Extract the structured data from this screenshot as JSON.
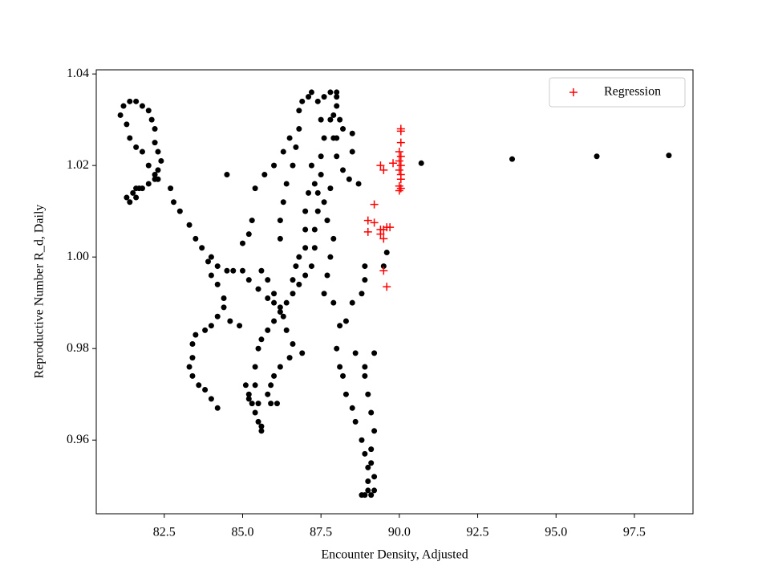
{
  "chart_data": {
    "type": "scatter",
    "xlabel": "Encounter Density, Adjusted",
    "ylabel": "Reproductive Number R_d, Daily",
    "xlim": [
      80.33,
      99.37
    ],
    "ylim": [
      0.9439,
      1.0409
    ],
    "xticks": [
      82.5,
      {
        "value": 85,
        "label": "85.0"
      },
      87.5,
      {
        "value": 90,
        "label": "90.0"
      },
      92.5,
      {
        "value": 95,
        "label": "95.0"
      },
      97.5
    ],
    "yticks": [
      0.96,
      0.98,
      {
        "value": 1,
        "label": "1.00"
      },
      1.02,
      1.04
    ],
    "legend": "upper right",
    "series": [
      {
        "color": "#000000",
        "marker": "dot",
        "x": [
          81.1,
          81.2,
          81.4,
          81.6,
          81.8,
          82.0,
          82.1,
          82.2,
          82.2,
          82.3,
          82.4,
          82.3,
          82.2,
          82.0,
          81.8,
          81.6,
          81.5,
          81.3,
          81.4,
          81.6,
          81.7,
          81.3,
          81.4,
          81.6,
          81.8,
          82.0,
          82.2,
          82.3,
          82.7,
          82.8,
          83.0,
          83.3,
          83.5,
          83.7,
          84.0,
          84.2,
          84.5,
          84.7,
          85.0,
          85.2,
          85.5,
          85.8,
          86.0,
          86.2,
          84.5,
          83.9,
          84.0,
          84.2,
          84.4,
          84.4,
          84.6,
          84.9,
          84.2,
          84.0,
          83.8,
          83.5,
          83.4,
          83.4,
          83.3,
          83.4,
          83.6,
          83.8,
          84.0,
          84.2,
          85.1,
          85.2,
          85.3,
          85.4,
          85.5,
          85.6,
          85.5,
          85.4,
          85.4,
          85.5,
          85.6,
          85.8,
          86.0,
          86.2,
          86.4,
          86.6,
          86.8,
          87.0,
          87.2,
          87.3,
          87.3,
          87.4,
          87.4,
          87.5,
          87.5,
          87.6,
          87.5,
          87.4,
          87.6,
          87.8,
          88.0,
          88.0,
          87.9,
          86.2,
          86.2,
          86.3,
          86.4,
          86.6,
          86.7,
          86.8,
          86.8,
          86.9,
          87.1,
          87.2,
          85.3,
          85.2,
          85.0,
          85.4,
          85.7,
          86.0,
          86.3,
          86.5,
          86.0,
          85.8,
          85.6,
          86.3,
          86.4,
          86.6,
          86.9,
          86.5,
          86.2,
          86.0,
          85.9,
          85.8,
          85.9,
          86.1,
          85.6,
          85.2,
          87.8,
          87.9,
          88.0,
          88.2,
          88.4,
          88.7,
          87.8,
          87.6,
          87.7,
          87.9,
          87.8,
          87.7,
          87.6,
          87.9,
          88.1,
          88.0,
          88.1,
          88.2,
          88.3,
          88.5,
          88.6,
          88.8,
          88.9,
          89.0,
          89.0,
          89.0,
          89.1,
          88.9,
          88.8,
          89.2,
          89.2,
          89.1,
          89.1,
          89.2,
          89.1,
          89.0,
          88.9,
          88.9,
          89.2,
          88.6,
          88.8,
          88.9,
          88.9,
          89.6,
          89.5,
          88.5,
          88.3,
          88.0,
          88.1,
          88.2,
          88.0,
          88.5,
          88.5,
          87.2,
          87.3,
          87.1,
          87.0,
          87.0,
          87.0,
          86.8,
          86.7,
          86.6,
          90.7,
          93.6,
          96.3,
          98.6
        ],
        "values": [
          1.031,
          1.033,
          1.034,
          1.034,
          1.033,
          1.032,
          1.03,
          1.028,
          1.025,
          1.023,
          1.021,
          1.019,
          1.017,
          1.016,
          1.015,
          1.015,
          1.014,
          1.013,
          1.012,
          1.013,
          1.015,
          1.029,
          1.026,
          1.024,
          1.023,
          1.02,
          1.018,
          1.017,
          1.015,
          1.012,
          1.01,
          1.007,
          1.004,
          1.002,
          1.0,
          0.998,
          0.997,
          0.997,
          0.997,
          0.995,
          0.993,
          0.991,
          0.99,
          0.989,
          1.018,
          0.999,
          0.996,
          0.994,
          0.991,
          0.989,
          0.986,
          0.985,
          0.987,
          0.985,
          0.984,
          0.983,
          0.981,
          0.978,
          0.976,
          0.974,
          0.972,
          0.971,
          0.969,
          0.967,
          0.972,
          0.97,
          0.968,
          0.966,
          0.964,
          0.962,
          0.968,
          0.972,
          0.976,
          0.98,
          0.982,
          0.984,
          0.986,
          0.988,
          0.99,
          0.992,
          0.994,
          0.996,
          0.998,
          1.002,
          1.006,
          1.01,
          1.014,
          1.018,
          1.022,
          1.026,
          1.03,
          1.034,
          1.035,
          1.036,
          1.035,
          1.033,
          1.031,
          1.004,
          1.008,
          1.012,
          1.016,
          1.02,
          1.024,
          1.028,
          1.032,
          1.034,
          1.035,
          1.036,
          1.008,
          1.005,
          1.003,
          1.015,
          1.018,
          1.02,
          1.023,
          1.026,
          0.992,
          0.995,
          0.997,
          0.987,
          0.984,
          0.981,
          0.979,
          0.978,
          0.976,
          0.974,
          0.972,
          0.97,
          0.968,
          0.968,
          0.963,
          0.969,
          1.03,
          1.026,
          1.022,
          1.019,
          1.017,
          1.016,
          1.015,
          1.012,
          1.008,
          1.004,
          1.0,
          0.996,
          0.992,
          0.99,
          0.985,
          0.98,
          0.976,
          0.974,
          0.97,
          0.967,
          0.964,
          0.96,
          0.957,
          0.954,
          0.951,
          0.949,
          0.948,
          0.948,
          0.948,
          0.949,
          0.952,
          0.955,
          0.958,
          0.962,
          0.966,
          0.97,
          0.974,
          0.976,
          0.979,
          0.979,
          0.992,
          0.995,
          0.998,
          1.001,
          0.998,
          0.99,
          0.986,
          1.026,
          1.03,
          1.028,
          1.036,
          1.023,
          1.027,
          1.02,
          1.016,
          1.014,
          1.01,
          1.006,
          1.002,
          1.0,
          0.998,
          0.995,
          1.0205,
          1.0214,
          1.022,
          1.0222
        ]
      },
      {
        "name": "Regression",
        "color": "#ff0000",
        "marker": "plus",
        "x": [
          90.05,
          90.05,
          90.05,
          90.0,
          90.05,
          90.0,
          90.05,
          90.0,
          90.05,
          90.05,
          90.0,
          90.05,
          90.0,
          89.8,
          89.4,
          89.5,
          89.2,
          89.0,
          89.2,
          89.4,
          89.5,
          89.7,
          89.6,
          89.0,
          89.4,
          89.5,
          89.5,
          89.6
        ],
        "values": [
          1.028,
          1.0275,
          1.025,
          1.023,
          1.022,
          1.021,
          1.02,
          1.019,
          1.018,
          1.017,
          1.0155,
          1.015,
          1.0145,
          1.0205,
          1.02,
          1.019,
          1.0115,
          1.008,
          1.0075,
          1.006,
          1.006,
          1.0065,
          1.0065,
          1.0055,
          1.005,
          1.004,
          0.997,
          0.9935
        ]
      }
    ]
  }
}
